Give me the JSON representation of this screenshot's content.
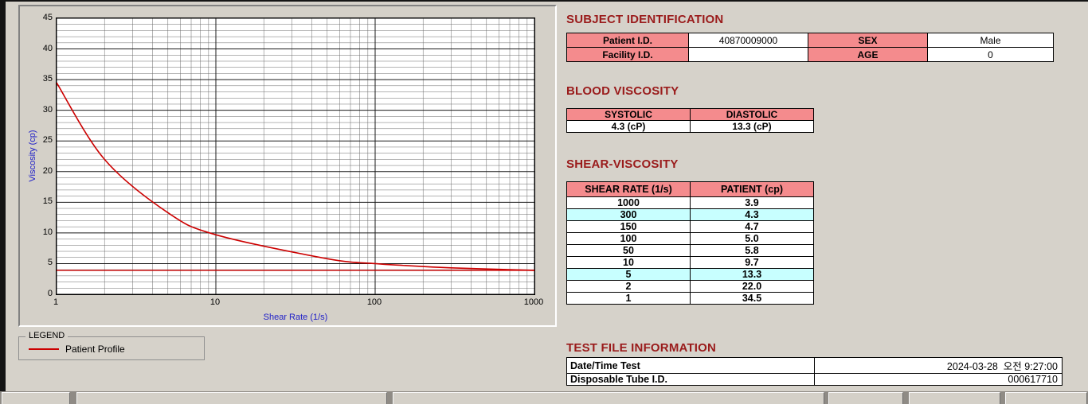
{
  "subject_identification": {
    "title": "SUBJECT IDENTIFICATION",
    "rows": [
      {
        "cells": [
          {
            "text": "Patient I.D.",
            "hdr": true,
            "name": "patient-id-label"
          },
          {
            "text": "40870009000",
            "name": "patient-id-value"
          },
          {
            "text": "SEX",
            "hdr": true,
            "name": "sex-label"
          },
          {
            "text": "Male",
            "name": "sex-value"
          }
        ]
      },
      {
        "cells": [
          {
            "text": "Facility I.D.",
            "hdr": true,
            "name": "facility-id-label"
          },
          {
            "text": "",
            "name": "facility-id-value"
          },
          {
            "text": "AGE",
            "hdr": true,
            "name": "age-label"
          },
          {
            "text": "0",
            "name": "age-value"
          }
        ]
      }
    ]
  },
  "blood_viscosity": {
    "title": "BLOOD VISCOSITY",
    "rows": [
      {
        "head": true,
        "cells": [
          {
            "text": "SYSTOLIC",
            "hdr": true,
            "name": "systolic-header"
          },
          {
            "text": "DIASTOLIC",
            "hdr": true,
            "name": "diastolic-header"
          }
        ]
      },
      {
        "cells": [
          {
            "text": "4.3 (cP)",
            "name": "systolic-value"
          },
          {
            "text": "13.3 (cP)",
            "name": "diastolic-value"
          }
        ]
      }
    ]
  },
  "shear_viscosity": {
    "title": "SHEAR-VISCOSITY",
    "rows": [
      {
        "head": true,
        "cells": [
          {
            "text": "SHEAR RATE (1/s)",
            "hdr": true,
            "name": "shear-rate-header"
          },
          {
            "text": "PATIENT (cp)",
            "hdr": true,
            "name": "patient-cp-header"
          }
        ]
      },
      {
        "cells": [
          {
            "text": "1000",
            "name": "shear-rate-cell"
          },
          {
            "text": "3.9",
            "name": "viscosity-cell"
          }
        ]
      },
      {
        "cells": [
          {
            "text": "300",
            "hl": true,
            "name": "shear-rate-cell"
          },
          {
            "text": "4.3",
            "hl": true,
            "name": "viscosity-cell"
          }
        ]
      },
      {
        "cells": [
          {
            "text": "150",
            "name": "shear-rate-cell"
          },
          {
            "text": "4.7",
            "name": "viscosity-cell"
          }
        ]
      },
      {
        "cells": [
          {
            "text": "100",
            "name": "shear-rate-cell"
          },
          {
            "text": "5.0",
            "name": "viscosity-cell"
          }
        ]
      },
      {
        "cells": [
          {
            "text": "50",
            "name": "shear-rate-cell"
          },
          {
            "text": "5.8",
            "name": "viscosity-cell"
          }
        ]
      },
      {
        "cells": [
          {
            "text": "10",
            "name": "shear-rate-cell"
          },
          {
            "text": "9.7",
            "name": "viscosity-cell"
          }
        ]
      },
      {
        "cells": [
          {
            "text": "5",
            "hl": true,
            "name": "shear-rate-cell"
          },
          {
            "text": "13.3",
            "hl": true,
            "name": "viscosity-cell"
          }
        ]
      },
      {
        "cells": [
          {
            "text": "2",
            "name": "shear-rate-cell"
          },
          {
            "text": "22.0",
            "name": "viscosity-cell"
          }
        ]
      },
      {
        "cells": [
          {
            "text": "1",
            "name": "shear-rate-cell"
          },
          {
            "text": "34.5",
            "name": "viscosity-cell"
          }
        ]
      }
    ]
  },
  "test_file_information": {
    "title": "TEST FILE INFORMATION",
    "rows": [
      {
        "cells": [
          {
            "text": "Date/Time Test",
            "cls": "lbl",
            "name": "date-time-label"
          },
          {
            "text": "2024-03-28  오전 9:27:00",
            "cls": "val",
            "name": "date-time-value"
          }
        ]
      },
      {
        "cells": [
          {
            "text": "Disposable Tube I.D.",
            "cls": "lbl",
            "name": "tube-id-label"
          },
          {
            "text": "000617710",
            "cls": "val",
            "name": "tube-id-value"
          }
        ]
      }
    ]
  },
  "legend": {
    "group_label": "LEGEND",
    "series_label": "Patient Profile"
  },
  "chart_data": {
    "type": "line",
    "title": "",
    "xlabel": "Shear Rate (1/s)",
    "ylabel": "Viscosity (cp)",
    "x_scale": "log",
    "xlim": [
      1,
      1000
    ],
    "ylim": [
      0,
      45
    ],
    "y_ticks": [
      0,
      5,
      10,
      15,
      20,
      25,
      30,
      35,
      40,
      45
    ],
    "x_ticks": [
      1,
      10,
      100,
      1000
    ],
    "grid": true,
    "legend_position": "bottom-left-outside",
    "series": [
      {
        "name": "Patient Profile",
        "color": "#cc0000",
        "x": [
          1,
          2,
          5,
          10,
          50,
          100,
          150,
          300,
          1000
        ],
        "y": [
          34.5,
          22.0,
          13.3,
          9.7,
          5.8,
          5.0,
          4.7,
          4.3,
          3.9
        ]
      }
    ],
    "reference_line_y": 3.9
  },
  "colors": {
    "heading": "#9a1b1b",
    "table_header_bg": "#f48b8d",
    "row_highlight_bg": "#c8ffff",
    "curve": "#cc0000",
    "axis_label": "#2020c8"
  }
}
